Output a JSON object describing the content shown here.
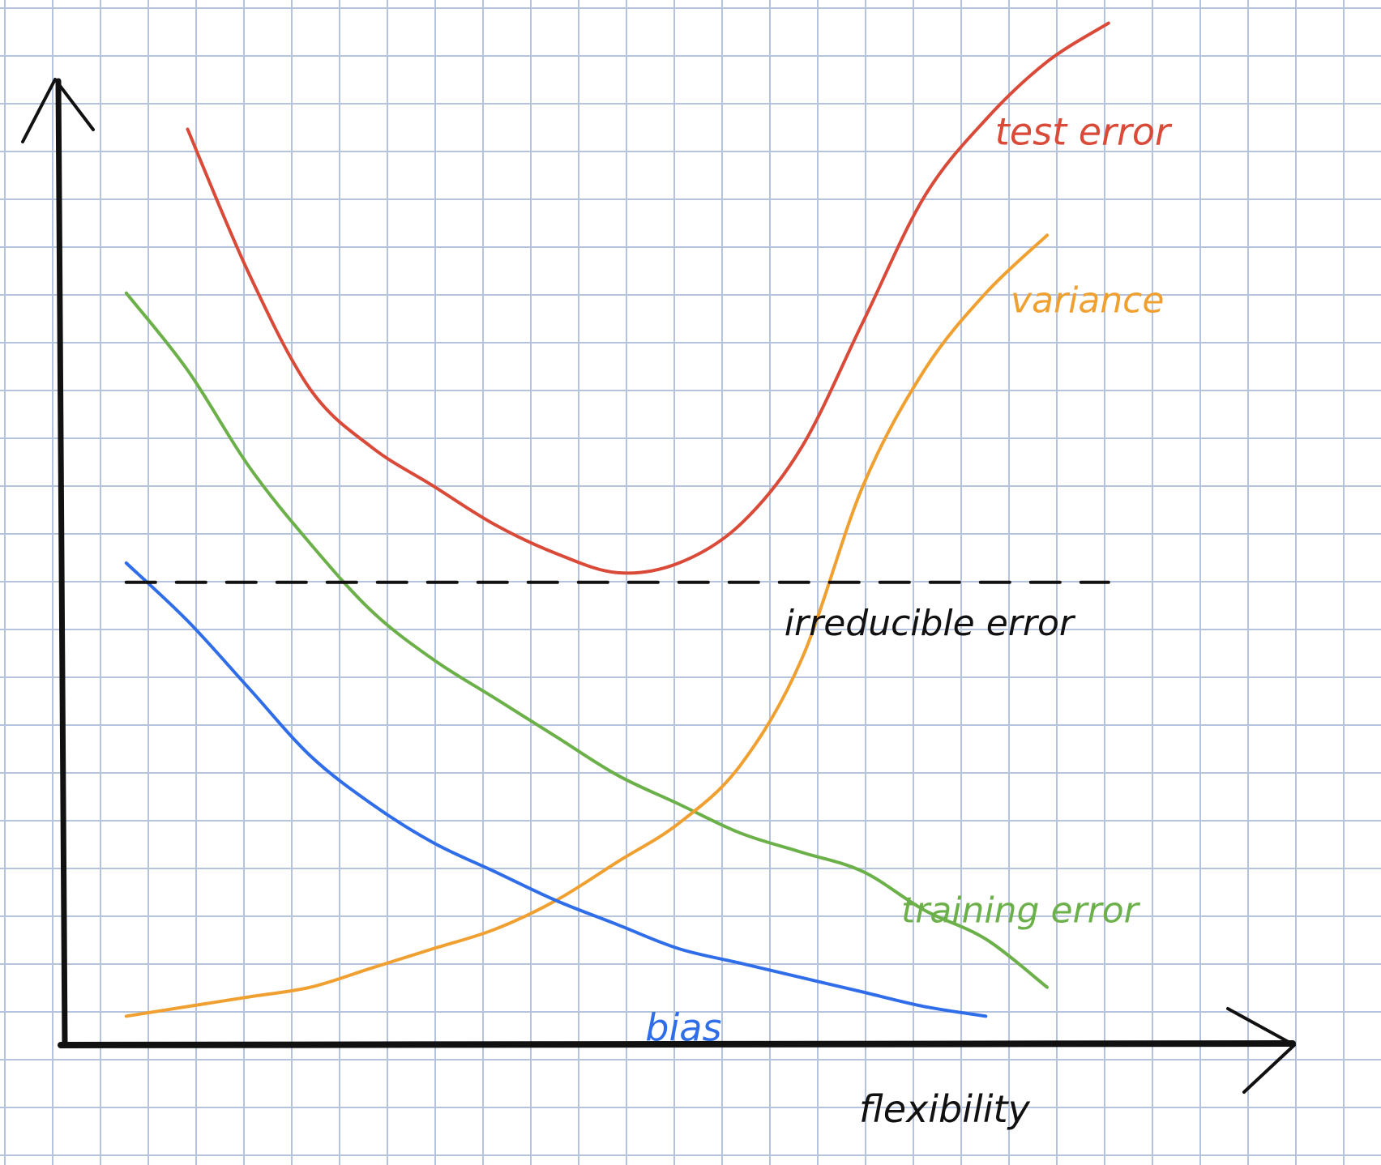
{
  "chart_data": {
    "type": "line",
    "title": "",
    "xlabel": "flexibility",
    "ylabel": "",
    "grid": true,
    "xlim": [
      0,
      100
    ],
    "ylim": [
      0,
      100
    ],
    "x": [
      5,
      10,
      15,
      20,
      25,
      30,
      35,
      40,
      45,
      50,
      55,
      60,
      65,
      70,
      75,
      80,
      85
    ],
    "series": [
      {
        "name": "test error",
        "color": "#d94a38",
        "values": [
          null,
          95,
          80,
          68,
          62,
          58,
          54,
          51,
          49,
          50,
          54,
          62,
          75,
          88,
          96,
          102,
          106
        ]
      },
      {
        "name": "training error",
        "color": "#6cb04a",
        "values": [
          78,
          70,
          60,
          52,
          45,
          40,
          36,
          32,
          28,
          25,
          22,
          20,
          18,
          14,
          11,
          6,
          null
        ]
      },
      {
        "name": "variance",
        "color": "#f0a030",
        "values": [
          3,
          4,
          5,
          6,
          8,
          10,
          12,
          15,
          19,
          23,
          29,
          40,
          58,
          70,
          78,
          84,
          null
        ]
      },
      {
        "name": "bias",
        "color": "#2f6ee8",
        "values": [
          50,
          44,
          37,
          30,
          25,
          21,
          18,
          15,
          12.5,
          10,
          8.5,
          7,
          5.5,
          4,
          3,
          null,
          null
        ]
      },
      {
        "name": "irreducible error",
        "color": "#111111",
        "dashed": true,
        "values": [
          48,
          48,
          48,
          48,
          48,
          48,
          48,
          48,
          48,
          48,
          48,
          48,
          48,
          48,
          48,
          48,
          48
        ]
      }
    ],
    "labels": [
      {
        "series": "test error",
        "text": "test error"
      },
      {
        "series": "variance",
        "text": "variance"
      },
      {
        "series": "irreducible error",
        "text": "irreducible error"
      },
      {
        "series": "training error",
        "text": "training error"
      },
      {
        "series": "bias",
        "text": "bias"
      }
    ]
  }
}
